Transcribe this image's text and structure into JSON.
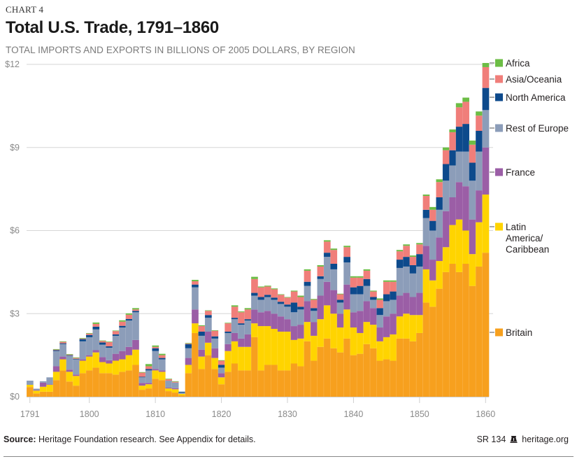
{
  "header": {
    "chart_number": "CHART 4",
    "title": "Total U.S. Trade, 1791–1860",
    "subtitle": "TOTAL IMPORTS AND EXPORTS IN BILLIONS OF 2005 DOLLARS, BY REGION"
  },
  "footer": {
    "source_label": "Source:",
    "source_text": " Heritage Foundation research. See Appendix for details.",
    "report_id": "SR 134",
    "logo_icon": "liberty-bell-icon",
    "website": "heritage.org"
  },
  "chart_data": {
    "type": "bar",
    "stacked": true,
    "title": "Total U.S. Trade, 1791–1860",
    "subtitle": "TOTAL IMPORTS AND EXPORTS IN BILLIONS OF 2005 DOLLARS, BY REGION",
    "xlabel": "",
    "ylabel": "",
    "ylim": [
      0,
      12
    ],
    "yticks": [
      0,
      3,
      6,
      9,
      12
    ],
    "ytick_labels": [
      "$0",
      "$3",
      "$6",
      "$9",
      "$12"
    ],
    "xticks": [
      1791,
      1800,
      1810,
      1820,
      1830,
      1840,
      1850,
      1860
    ],
    "xtick_labels": [
      "1791",
      "1800",
      "1810",
      "1820",
      "1830",
      "1840",
      "1850",
      "1860"
    ],
    "grid": true,
    "legend_position": "right",
    "categories": [
      1791,
      1792,
      1793,
      1794,
      1795,
      1796,
      1797,
      1798,
      1799,
      1800,
      1801,
      1802,
      1803,
      1804,
      1805,
      1806,
      1807,
      1808,
      1809,
      1810,
      1811,
      1812,
      1813,
      1814,
      1815,
      1816,
      1817,
      1818,
      1819,
      1820,
      1821,
      1822,
      1823,
      1824,
      1825,
      1826,
      1827,
      1828,
      1829,
      1830,
      1831,
      1832,
      1833,
      1834,
      1835,
      1836,
      1837,
      1838,
      1839,
      1840,
      1841,
      1842,
      1843,
      1844,
      1845,
      1846,
      1847,
      1848,
      1849,
      1850,
      1851,
      1852,
      1853,
      1854,
      1855,
      1856,
      1857,
      1858,
      1859,
      1860
    ],
    "series": [
      {
        "name": "Britain",
        "color": "#f7a01e",
        "values": [
          0.35,
          0.12,
          0.18,
          0.18,
          0.6,
          0.95,
          0.55,
          0.4,
          0.85,
          0.95,
          1.05,
          0.85,
          0.85,
          0.8,
          0.9,
          0.95,
          1.15,
          0.25,
          0.3,
          0.65,
          0.6,
          0.2,
          0.15,
          0.05,
          0.85,
          2.3,
          1.0,
          1.5,
          1.0,
          0.45,
          0.9,
          1.2,
          0.95,
          0.95,
          2.15,
          0.95,
          1.15,
          1.15,
          0.95,
          0.95,
          1.2,
          1.1,
          2.0,
          1.3,
          1.8,
          2.1,
          1.75,
          1.6,
          2.1,
          1.5,
          1.55,
          1.9,
          1.75,
          1.3,
          1.35,
          1.3,
          2.1,
          2.1,
          2.0,
          2.3,
          3.4,
          3.25,
          3.9,
          4.5,
          4.8,
          4.5,
          4.8,
          4.0,
          4.7,
          5.2
        ]
      },
      {
        "name": "Latin America/Caribbean",
        "color": "#ffd400",
        "values": [
          0.08,
          0.1,
          0.18,
          0.25,
          0.3,
          0.4,
          0.35,
          0.35,
          0.45,
          0.5,
          0.55,
          0.4,
          0.35,
          0.5,
          0.45,
          0.55,
          0.55,
          0.15,
          0.15,
          0.3,
          0.3,
          0.1,
          0.12,
          0.05,
          0.3,
          0.35,
          0.45,
          0.45,
          0.4,
          0.25,
          0.75,
          0.8,
          0.85,
          0.85,
          0.5,
          1.6,
          1.4,
          1.3,
          1.4,
          1.4,
          0.85,
          1.0,
          0.7,
          0.9,
          1.0,
          1.2,
          1.25,
          0.9,
          1.05,
          1.0,
          0.75,
          0.8,
          0.85,
          0.7,
          0.8,
          0.95,
          0.8,
          0.9,
          0.95,
          0.65,
          1.2,
          0.95,
          1.0,
          0.9,
          1.4,
          1.9,
          1.2,
          1.15,
          1.6,
          2.1
        ]
      },
      {
        "name": "France",
        "color": "#9b5ea6",
        "values": [
          0.0,
          0.02,
          0.15,
          0.02,
          0.2,
          0.1,
          0.08,
          0.05,
          0.05,
          0.05,
          0.08,
          0.18,
          0.12,
          0.25,
          0.3,
          0.3,
          0.35,
          0.1,
          0.05,
          0.05,
          0.05,
          0.03,
          0.04,
          0.0,
          0.25,
          0.5,
          0.25,
          0.4,
          0.35,
          0.15,
          0.25,
          0.3,
          0.3,
          0.45,
          0.5,
          0.5,
          0.55,
          0.55,
          0.55,
          0.45,
          0.5,
          0.5,
          0.75,
          0.5,
          0.85,
          0.85,
          0.85,
          0.5,
          0.9,
          0.55,
          0.8,
          0.75,
          0.6,
          0.5,
          0.75,
          0.75,
          0.75,
          0.75,
          0.65,
          0.8,
          0.85,
          0.75,
          0.85,
          1.3,
          1.0,
          1.35,
          1.6,
          1.25,
          1.15,
          1.7
        ]
      },
      {
        "name": "Rest of Europe",
        "color": "#8c9db9",
        "values": [
          0.15,
          0.05,
          0.05,
          0.25,
          0.55,
          0.45,
          0.5,
          0.55,
          0.65,
          0.65,
          0.75,
          0.45,
          0.45,
          0.65,
          0.85,
          0.95,
          1.0,
          0.2,
          0.45,
          0.65,
          0.4,
          0.25,
          0.2,
          0.05,
          0.35,
          0.8,
          0.5,
          0.5,
          0.35,
          0.2,
          0.4,
          0.5,
          0.5,
          0.5,
          0.5,
          0.45,
          0.5,
          0.5,
          0.45,
          0.45,
          0.5,
          0.55,
          0.55,
          0.4,
          0.6,
          0.9,
          0.75,
          0.4,
          0.8,
          0.65,
          0.6,
          0.55,
          0.3,
          0.45,
          0.55,
          0.5,
          1.0,
          0.95,
          0.85,
          0.95,
          1.0,
          1.05,
          1.0,
          1.1,
          1.15,
          1.1,
          1.25,
          1.4,
          1.4,
          1.35
        ]
      },
      {
        "name": "North America",
        "color": "#0d4a8c",
        "values": [
          0.0,
          0.0,
          0.0,
          0.0,
          0.03,
          0.03,
          0.02,
          0.02,
          0.08,
          0.08,
          0.1,
          0.08,
          0.05,
          0.05,
          0.06,
          0.06,
          0.05,
          0.02,
          0.05,
          0.1,
          0.05,
          0.0,
          0.0,
          0.03,
          0.15,
          0.1,
          0.15,
          0.1,
          0.08,
          0.1,
          0.05,
          0.05,
          0.05,
          0.05,
          0.1,
          0.1,
          0.08,
          0.08,
          0.08,
          0.08,
          0.35,
          0.1,
          0.15,
          0.1,
          0.1,
          0.15,
          0.2,
          0.1,
          0.2,
          0.25,
          0.3,
          0.25,
          0.1,
          0.25,
          0.25,
          0.3,
          0.3,
          0.35,
          0.3,
          0.45,
          0.3,
          0.35,
          0.45,
          0.6,
          0.55,
          0.9,
          1.0,
          0.65,
          0.75,
          0.8
        ]
      },
      {
        "name": "Asia/Oceania",
        "color": "#f07e7a",
        "values": [
          0.0,
          0.0,
          0.0,
          0.0,
          0.02,
          0.05,
          0.02,
          0.03,
          0.02,
          0.05,
          0.1,
          0.05,
          0.15,
          0.12,
          0.15,
          0.15,
          0.05,
          0.15,
          0.1,
          0.05,
          0.1,
          0.05,
          0.03,
          0.0,
          0.02,
          0.12,
          0.2,
          0.15,
          0.2,
          0.15,
          0.3,
          0.4,
          0.4,
          0.35,
          0.5,
          0.35,
          0.3,
          0.3,
          0.25,
          0.25,
          0.4,
          0.35,
          0.4,
          0.3,
          0.35,
          0.4,
          0.5,
          0.2,
          0.35,
          0.35,
          0.3,
          0.3,
          0.2,
          0.3,
          0.45,
          0.35,
          0.3,
          0.4,
          0.3,
          0.35,
          0.5,
          0.4,
          0.55,
          0.5,
          0.65,
          0.7,
          0.8,
          0.65,
          0.55,
          0.75
        ]
      },
      {
        "name": "Africa",
        "color": "#6cbd45",
        "values": [
          0.0,
          0.0,
          0.0,
          0.0,
          0.02,
          0.02,
          0.02,
          0.02,
          0.02,
          0.02,
          0.05,
          0.02,
          0.02,
          0.02,
          0.05,
          0.05,
          0.05,
          0.02,
          0.08,
          0.05,
          0.05,
          0.02,
          0.02,
          0.0,
          0.02,
          0.05,
          0.03,
          0.02,
          0.02,
          0.02,
          0.02,
          0.05,
          0.03,
          0.05,
          0.08,
          0.03,
          0.03,
          0.03,
          0.02,
          0.02,
          0.03,
          0.05,
          0.05,
          0.03,
          0.05,
          0.05,
          0.05,
          0.02,
          0.05,
          0.05,
          0.05,
          0.05,
          0.03,
          0.05,
          0.05,
          0.05,
          0.05,
          0.05,
          0.05,
          0.05,
          0.05,
          0.1,
          0.1,
          0.1,
          0.1,
          0.15,
          0.15,
          0.15,
          0.15,
          0.15
        ]
      }
    ],
    "legend": [
      {
        "name": "Africa",
        "color": "#6cbd45"
      },
      {
        "name": "Asia/Oceania",
        "color": "#f07e7a"
      },
      {
        "name": "North America",
        "color": "#0d4a8c"
      },
      {
        "name": "Rest of Europe",
        "color": "#8c9db9"
      },
      {
        "name": "France",
        "color": "#9b5ea6"
      },
      {
        "name": "Latin America/ Caribbean",
        "color": "#ffd400"
      },
      {
        "name": "Britain",
        "color": "#f7a01e"
      }
    ],
    "legend_labels_wrapped": [
      [
        "Africa"
      ],
      [
        "Asia/Oceania"
      ],
      [
        "North America"
      ],
      [
        "Rest of Europe"
      ],
      [
        "France"
      ],
      [
        "Latin",
        "America/",
        "Caribbean"
      ],
      [
        "Britain"
      ]
    ]
  }
}
